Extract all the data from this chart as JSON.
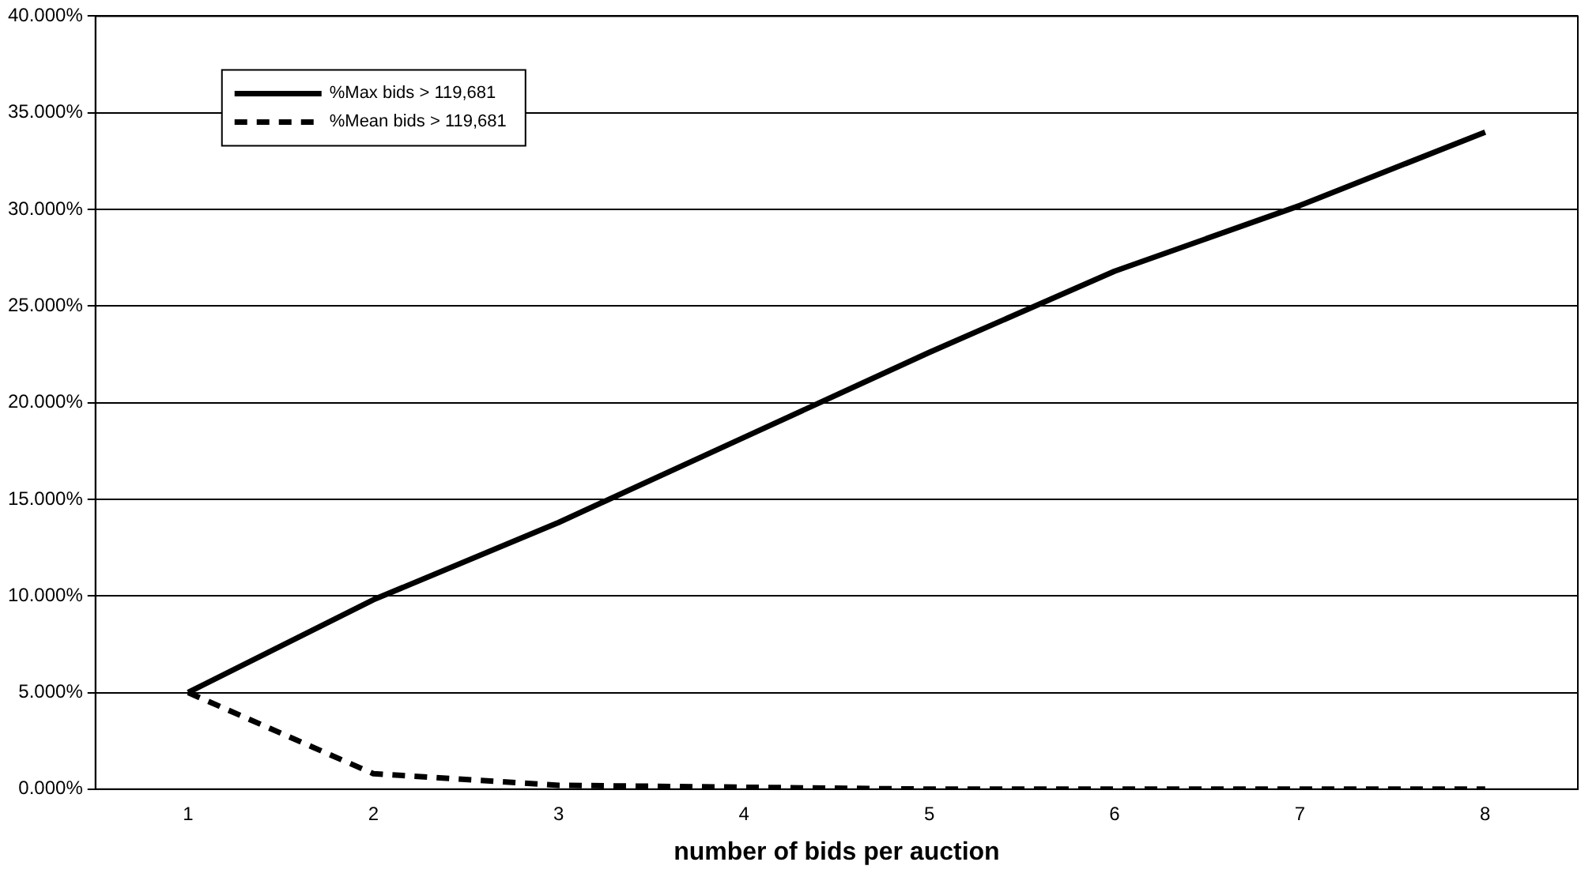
{
  "chart_data": {
    "type": "line",
    "xlabel": "number of bids per auction",
    "categories": [
      "1",
      "2",
      "3",
      "4",
      "5",
      "6",
      "7",
      "8"
    ],
    "series": [
      {
        "name": "%Max bids > 119,681",
        "color": "#000000",
        "line_style": "solid",
        "values": [
          5.0,
          9.8,
          13.8,
          18.2,
          22.6,
          26.8,
          30.2,
          34.0
        ]
      },
      {
        "name": "%Mean bids > 119,681",
        "color": "#000000",
        "line_style": "dashed",
        "values": [
          5.0,
          0.8,
          0.2,
          0.1,
          0,
          0,
          0,
          0
        ]
      }
    ],
    "ylim": [
      0,
      40
    ],
    "yticks": [
      {
        "value": 0,
        "label": "0.000%"
      },
      {
        "value": 5,
        "label": "5.000%"
      },
      {
        "value": 10,
        "label": "10.000%"
      },
      {
        "value": 15,
        "label": "15.000%"
      },
      {
        "value": 20,
        "label": "20.000%"
      },
      {
        "value": 25,
        "label": "25.000%"
      },
      {
        "value": 30,
        "label": "30.000%"
      },
      {
        "value": 35,
        "label": "35.000%"
      },
      {
        "value": 40,
        "label": "40.000%"
      }
    ],
    "grid": "y",
    "legend": "top left",
    "marker": "none"
  }
}
